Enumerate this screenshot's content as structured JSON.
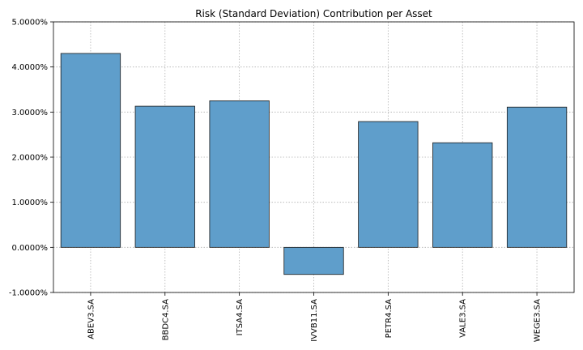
{
  "chart_data": {
    "type": "bar",
    "title": "Risk (Standard Deviation) Contribution per Asset",
    "xlabel": "",
    "ylabel": "",
    "categories": [
      "ABEV3.SA",
      "BBDC4.SA",
      "ITSA4.SA",
      "IVVB11.SA",
      "PETR4.SA",
      "VALE3.SA",
      "WEGE3.SA"
    ],
    "values": [
      4.3,
      3.13,
      3.25,
      -0.6,
      2.79,
      2.32,
      3.11
    ],
    "ylim": [
      -1.0,
      5.0
    ],
    "yticks": [
      -1.0,
      0.0,
      1.0,
      2.0,
      3.0,
      4.0,
      5.0
    ],
    "ytick_labels": [
      "-1.0000%",
      "0.0000%",
      "1.0000%",
      "2.0000%",
      "3.0000%",
      "4.0000%",
      "5.0000%"
    ],
    "grid": true,
    "bar_color": "#5f9ecb",
    "edge_color": "#1a1a1a"
  }
}
